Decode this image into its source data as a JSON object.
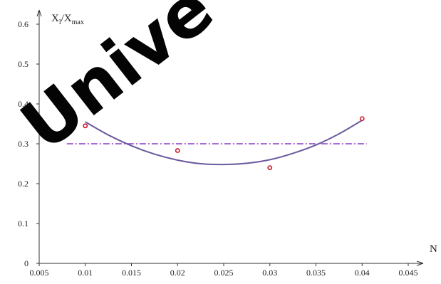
{
  "chart_data": {
    "type": "scatter",
    "x_ticks": [
      "0.005",
      "0.01",
      "0.015",
      "0.02",
      "0.025",
      "0.03",
      "0.035",
      "0.04",
      "0.045"
    ],
    "y_ticks": [
      "0",
      "0.1",
      "0.2",
      "0.3",
      "0.4",
      "0.5",
      "0.6"
    ],
    "xlim": [
      0.005,
      0.045
    ],
    "ylim": [
      0,
      0.6
    ],
    "xlabel": "N",
    "ylabel": {
      "main": "X",
      "sub1": "l",
      "mid": "/X",
      "sub2": "max"
    },
    "points": [
      {
        "x": 0.01,
        "y": 0.345
      },
      {
        "x": 0.02,
        "y": 0.283
      },
      {
        "x": 0.03,
        "y": 0.24
      },
      {
        "x": 0.04,
        "y": 0.363
      }
    ],
    "trend_curve": {
      "x": [
        0.01,
        0.0125,
        0.015,
        0.0175,
        0.02,
        0.0225,
        0.025,
        0.0275,
        0.03,
        0.0325,
        0.035,
        0.0375,
        0.04
      ],
      "y": [
        0.355,
        0.322,
        0.295,
        0.274,
        0.259,
        0.25,
        0.248,
        0.251,
        0.26,
        0.276,
        0.297,
        0.325,
        0.359
      ]
    },
    "reference_line": {
      "y": 0.3
    },
    "grid": false,
    "colors": {
      "axis": "#333333",
      "point": "#d0142a",
      "curve": "#6b5a9e",
      "reference": "#8a3fc4"
    },
    "watermark": "Unive"
  }
}
